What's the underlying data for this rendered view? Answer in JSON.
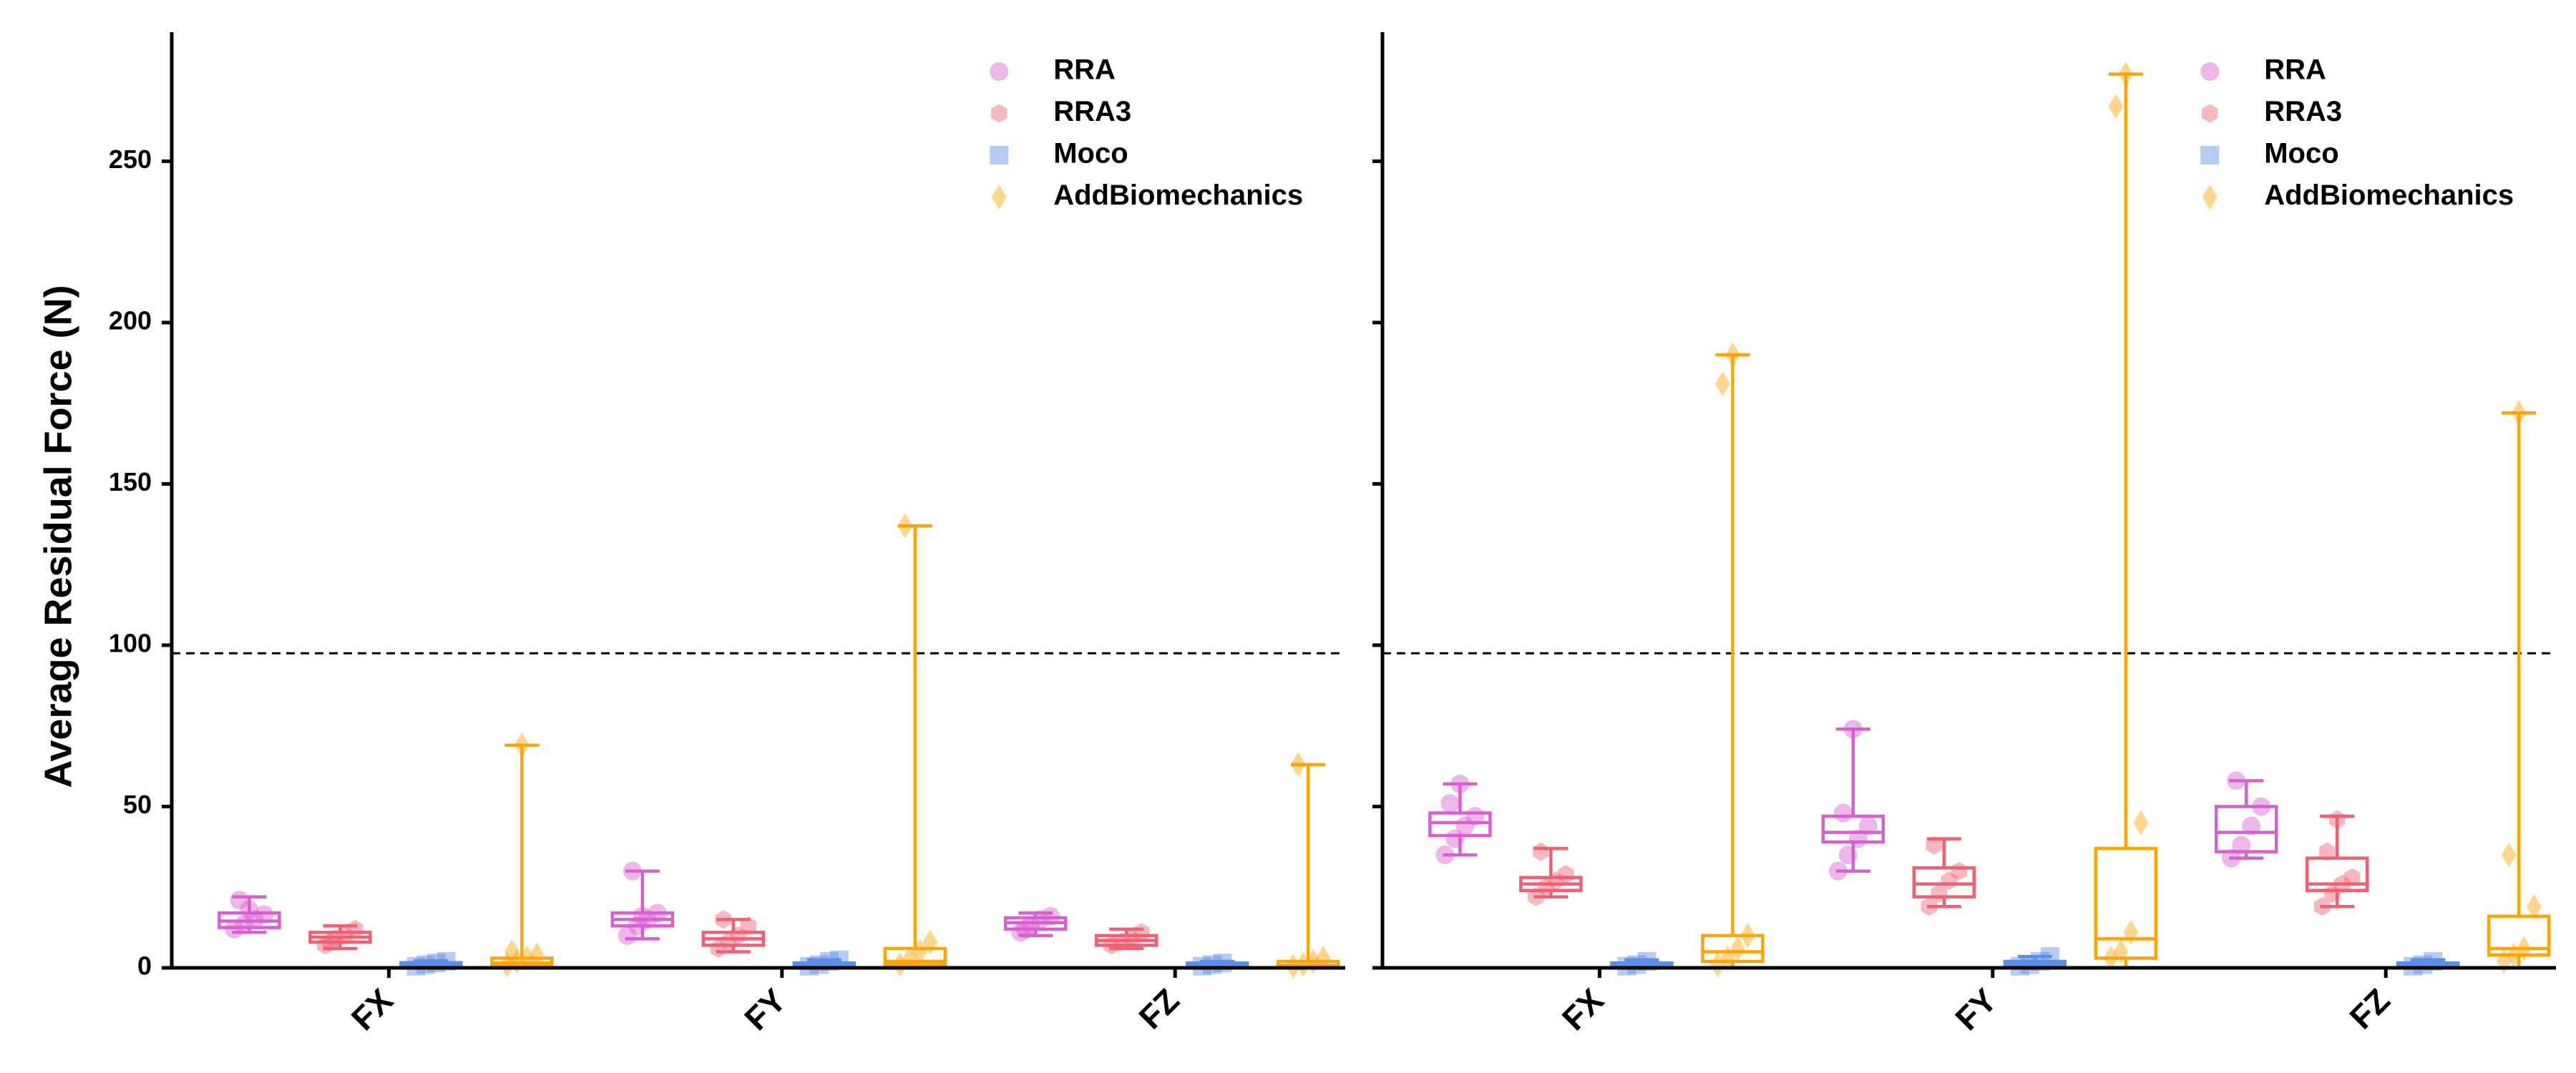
{
  "chart_data": {
    "type": "box",
    "ylabel": "Average Residual Force (N)",
    "ylim": [
      0,
      290
    ],
    "yticks": [
      0,
      50,
      100,
      150,
      200,
      250
    ],
    "reference_line": 97.5,
    "categories": [
      "FX",
      "FY",
      "FZ"
    ],
    "legend_position": "top-right",
    "series": [
      {
        "name": "RRA",
        "color": "#d95fd0",
        "marker": "circle"
      },
      {
        "name": "RRA3",
        "color": "#f25f72",
        "marker": "hexagon"
      },
      {
        "name": "Moco",
        "color": "#5b8fe6",
        "marker": "square"
      },
      {
        "name": "AddBiomechanics",
        "color": "#ffa500",
        "marker": "diamond"
      }
    ],
    "panels": [
      {
        "boxes": [
          [
            {
              "q1": 12.5,
              "median": 14.5,
              "q3": 17,
              "wmin": 11,
              "wmax": 22,
              "points": [
                12,
                13.5,
                15,
                16.5,
                21,
                18
              ]
            },
            {
              "q1": 8,
              "median": 9.5,
              "q3": 11,
              "wmin": 6,
              "wmax": 13,
              "points": [
                7,
                9,
                10,
                12,
                8
              ]
            },
            {
              "q1": 0.6,
              "median": 1.1,
              "q3": 1.6,
              "wmin": 0.3,
              "wmax": 2.2,
              "points": [
                0.5,
                1,
                1.5,
                2
              ]
            },
            {
              "q1": 0.5,
              "median": 1.5,
              "q3": 3,
              "wmin": 0,
              "wmax": 69,
              "points": [
                1,
                2,
                3,
                4,
                5,
                69
              ]
            }
          ],
          [
            {
              "q1": 13,
              "median": 15,
              "q3": 17,
              "wmin": 9,
              "wmax": 30,
              "points": [
                10,
                13,
                15,
                17,
                30,
                16
              ]
            },
            {
              "q1": 7,
              "median": 9,
              "q3": 11,
              "wmin": 5,
              "wmax": 15,
              "points": [
                6,
                8,
                10,
                13,
                15
              ]
            },
            {
              "q1": 0.5,
              "median": 1,
              "q3": 1.5,
              "wmin": 0.2,
              "wmax": 2.5,
              "points": [
                0.5,
                1,
                2,
                2.5
              ]
            },
            {
              "q1": 1,
              "median": 2,
              "q3": 6,
              "wmin": 0,
              "wmax": 137,
              "points": [
                1,
                3,
                5,
                8,
                137
              ]
            }
          ],
          [
            {
              "q1": 12,
              "median": 14,
              "q3": 15.5,
              "wmin": 10,
              "wmax": 17,
              "points": [
                11,
                13,
                15,
                16,
                12
              ]
            },
            {
              "q1": 7,
              "median": 8.5,
              "q3": 10,
              "wmin": 6,
              "wmax": 12,
              "points": [
                7,
                8,
                9,
                11
              ]
            },
            {
              "q1": 0.5,
              "median": 1,
              "q3": 1.5,
              "wmin": 0.3,
              "wmax": 2,
              "points": [
                0.5,
                1,
                1.5
              ]
            },
            {
              "q1": 0.3,
              "median": 0.8,
              "q3": 2,
              "wmin": 0,
              "wmax": 63,
              "points": [
                0.5,
                1,
                2,
                3,
                63
              ]
            }
          ]
        ]
      },
      {
        "boxes": [
          [
            {
              "q1": 41,
              "median": 45,
              "q3": 48,
              "wmin": 35,
              "wmax": 57,
              "points": [
                35,
                40,
                44,
                47,
                51,
                57
              ]
            },
            {
              "q1": 24,
              "median": 26,
              "q3": 28,
              "wmin": 22,
              "wmax": 37,
              "points": [
                22,
                25,
                27,
                29,
                36
              ]
            },
            {
              "q1": 0.5,
              "median": 1,
              "q3": 1.5,
              "wmin": 0.2,
              "wmax": 2.5,
              "points": [
                0.5,
                1,
                2
              ]
            },
            {
              "q1": 2,
              "median": 5,
              "q3": 10,
              "wmin": 0,
              "wmax": 190,
              "points": [
                1,
                3,
                6,
                10,
                181,
                190
              ]
            }
          ],
          [
            {
              "q1": 39,
              "median": 42,
              "q3": 47,
              "wmin": 30,
              "wmax": 74,
              "points": [
                30,
                35,
                40,
                44,
                48,
                74
              ]
            },
            {
              "q1": 22,
              "median": 26,
              "q3": 31,
              "wmin": 19,
              "wmax": 40,
              "points": [
                19,
                23,
                27,
                30,
                38
              ]
            },
            {
              "q1": 0.5,
              "median": 1.2,
              "q3": 2,
              "wmin": 0.2,
              "wmax": 3.5,
              "points": [
                0.5,
                1,
                2,
                3.5
              ]
            },
            {
              "q1": 3,
              "median": 9,
              "q3": 37,
              "wmin": 0,
              "wmax": 277,
              "points": [
                3,
                5,
                11,
                45,
                267,
                277
              ]
            }
          ],
          [
            {
              "q1": 36,
              "median": 42,
              "q3": 50,
              "wmin": 34,
              "wmax": 58,
              "points": [
                34,
                38,
                44,
                50,
                58
              ]
            },
            {
              "q1": 24,
              "median": 26,
              "q3": 34,
              "wmin": 19,
              "wmax": 47,
              "points": [
                19,
                23,
                26,
                28,
                36,
                46
              ]
            },
            {
              "q1": 0.5,
              "median": 1,
              "q3": 1.5,
              "wmin": 0.2,
              "wmax": 2.5,
              "points": [
                0.5,
                1,
                2
              ]
            },
            {
              "q1": 4,
              "median": 6,
              "q3": 16,
              "wmin": 0,
              "wmax": 172,
              "points": [
                2,
                4,
                6,
                19,
                35,
                172
              ]
            }
          ]
        ]
      }
    ]
  }
}
